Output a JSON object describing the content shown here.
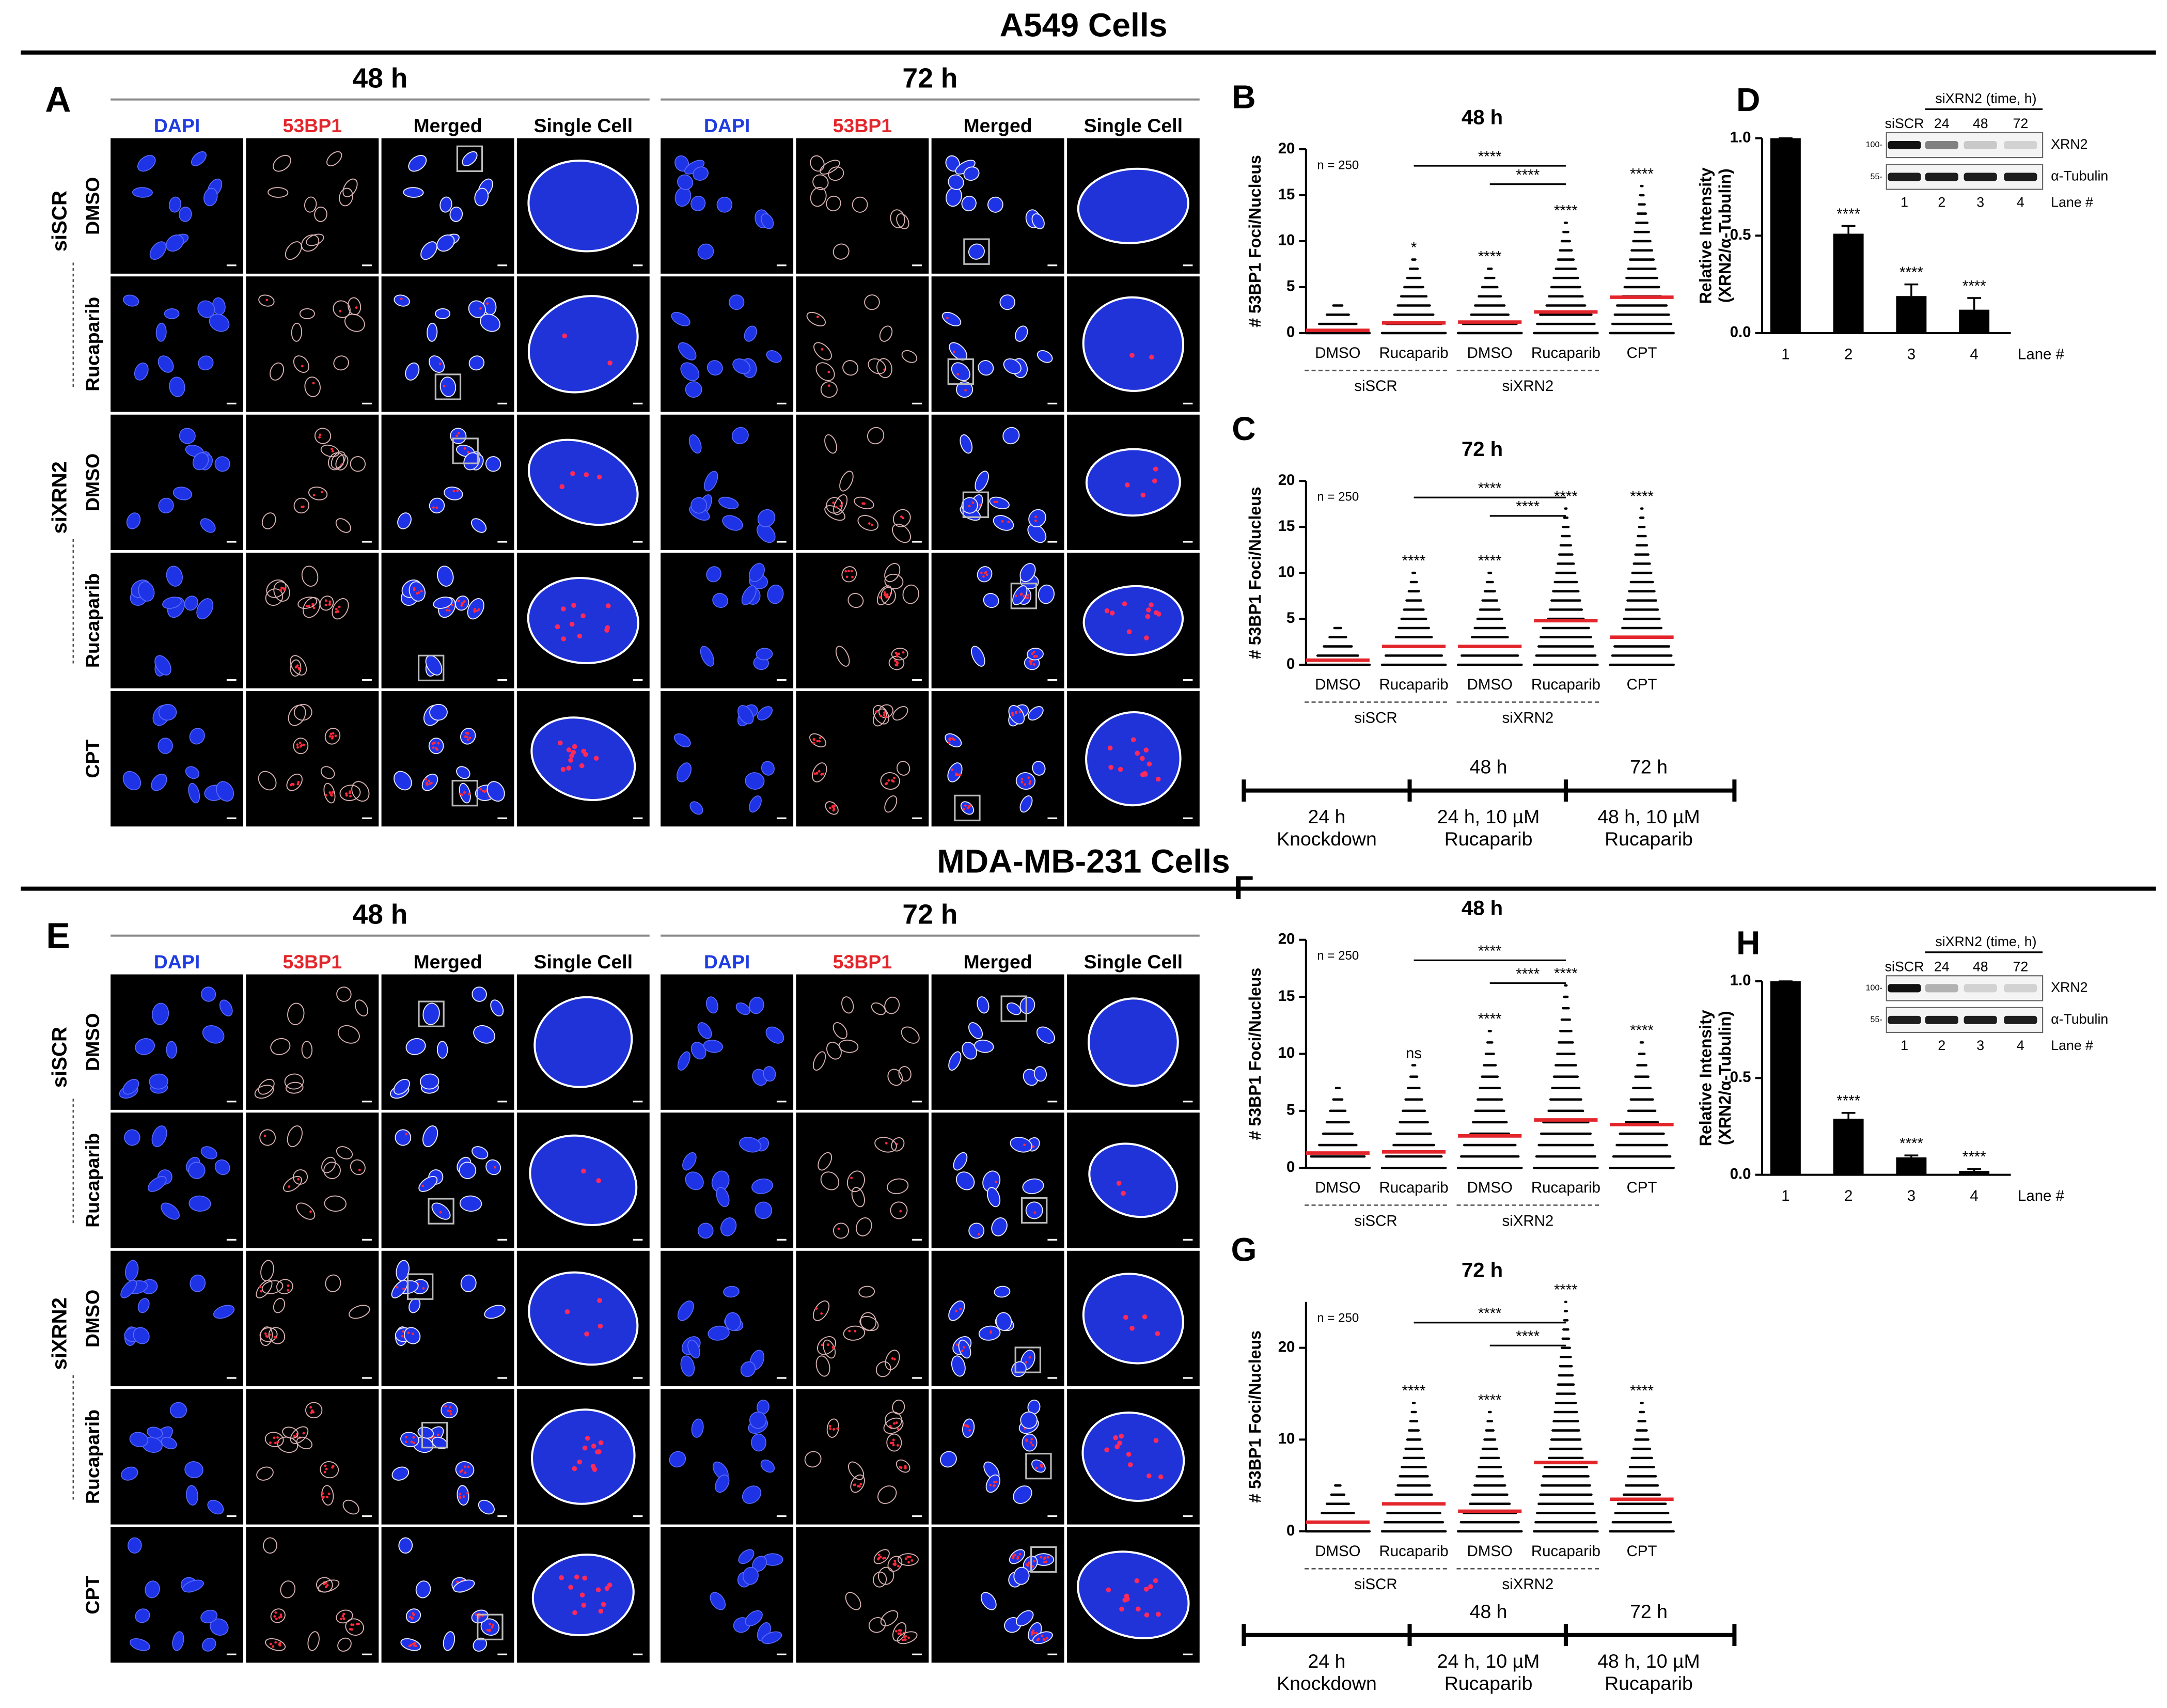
{
  "sections": [
    {
      "title": "A549 Cells",
      "micrograph": {
        "panel": "A",
        "panels": [
          {
            "time": "48 h",
            "channels": [
              "DAPI",
              "53BP1",
              "Merged",
              "Single Cell"
            ]
          },
          {
            "time": "72 h",
            "channels": [
              "DAPI",
              "53BP1",
              "Merged",
              "Single Cell"
            ]
          }
        ],
        "groups": [
          "siSCR",
          "siXRN2"
        ],
        "rows": [
          "DMSO",
          "Rucaparib",
          "DMSO",
          "Rucaparib",
          "CPT"
        ]
      },
      "timeline": {
        "upper": [
          "48 h",
          "72 h"
        ],
        "stages": [
          [
            "24 h",
            "Knockdown"
          ],
          [
            "24 h, 10 µM",
            "Rucaparib"
          ],
          [
            "48 h, 10 µM",
            "Rucaparib"
          ]
        ]
      }
    },
    {
      "title": "MDA-MB-231 Cells",
      "micrograph": {
        "panel": "E",
        "panels": [
          {
            "time": "48 h",
            "channels": [
              "DAPI",
              "53BP1",
              "Merged",
              "Single Cell"
            ]
          },
          {
            "time": "72 h",
            "channels": [
              "DAPI",
              "53BP1",
              "Merged",
              "Single Cell"
            ]
          }
        ],
        "groups": [
          "siSCR",
          "siXRN2"
        ],
        "rows": [
          "DMSO",
          "Rucaparib",
          "DMSO",
          "Rucaparib",
          "CPT"
        ]
      },
      "timeline": {
        "upper": [
          "48 h",
          "72 h"
        ],
        "stages": [
          [
            "24 h",
            "Knockdown"
          ],
          [
            "24 h, 10 µM",
            "Rucaparib"
          ],
          [
            "48 h, 10 µM",
            "Rucaparib"
          ]
        ]
      }
    }
  ],
  "chart_data": [
    {
      "type": "dotplot",
      "panel": "B",
      "title": "48 h",
      "ylabel": "# 53BP1 Foci/Nucleus",
      "n_label": "n = 250",
      "categories": [
        "DMSO",
        "Rucaparib",
        "DMSO",
        "Rucaparib",
        "CPT"
      ],
      "group_labels": [
        "siSCR",
        "siXRN2"
      ],
      "values": [
        0.3,
        1.1,
        1.2,
        2.3,
        3.9
      ],
      "max": [
        3,
        8,
        7,
        12,
        16
      ],
      "sig_labels": [
        null,
        "*",
        "****",
        "****",
        "****"
      ],
      "comparisons": [
        "****",
        "****"
      ],
      "mean_color": "#e3262b",
      "ylim": [
        0,
        20
      ],
      "yticks": [
        0,
        5,
        10,
        15,
        20
      ]
    },
    {
      "type": "dotplot",
      "panel": "C",
      "title": "72 h",
      "ylabel": "# 53BP1 Foci/Nucleus",
      "n_label": "n = 250",
      "categories": [
        "DMSO",
        "Rucaparib",
        "DMSO",
        "Rucaparib",
        "CPT"
      ],
      "group_labels": [
        "siSCR",
        "siXRN2"
      ],
      "values": [
        0.5,
        2,
        2,
        4.8,
        3
      ],
      "max": [
        4,
        10,
        10,
        17,
        17
      ],
      "sig_labels": [
        null,
        "****",
        "****",
        "****",
        "****"
      ],
      "comparisons": [
        "****",
        "****"
      ],
      "mean_color": "#e3262b",
      "ylim": [
        0,
        20
      ],
      "yticks": [
        0,
        5,
        10,
        15,
        20
      ]
    },
    {
      "type": "bar",
      "panel": "D",
      "ylabel_lines": [
        "Relative Intensity",
        "(XRN2/α-Tubulin)"
      ],
      "categories": [
        "1",
        "2",
        "3",
        "4"
      ],
      "xlabel": "Lane #",
      "values": [
        1,
        0.51,
        0.19,
        0.12
      ],
      "errors": [
        0,
        0.04,
        0.06,
        0.06
      ],
      "sig_labels": [
        null,
        "****",
        "****",
        "****"
      ],
      "color": "#000000",
      "ylim": [
        0,
        1
      ],
      "yticks": [
        {
          "value": 0,
          "label": "0.0"
        },
        0.5,
        {
          "value": 1,
          "label": "1.0"
        }
      ],
      "blot": {
        "control": "siSCR",
        "treatment": "siXRN2 (time, h)",
        "times": [
          "24",
          "48",
          "72"
        ],
        "bands": [
          "XRN2",
          "α-Tubulin"
        ],
        "markers": [
          "100-",
          "55-"
        ],
        "lanes": [
          "1",
          "2",
          "3",
          "4"
        ],
        "lane_label": "Lane #"
      }
    },
    {
      "type": "dotplot",
      "panel": "F",
      "title": "48 h",
      "ylabel": "# 53BP1 Foci/Nucleus",
      "n_label": "n = 250",
      "categories": [
        "DMSO",
        "Rucaparib",
        "DMSO",
        "Rucaparib",
        "CPT"
      ],
      "group_labels": [
        "siSCR",
        "siXRN2"
      ],
      "values": [
        1.3,
        1.4,
        2.8,
        4.2,
        3.8
      ],
      "max": [
        7,
        9,
        12,
        16,
        11
      ],
      "sig_labels": [
        null,
        "ns",
        "****",
        "****",
        "****"
      ],
      "comparisons": [
        "****",
        "****"
      ],
      "mean_color": "#e3262b",
      "ylim": [
        0,
        20
      ],
      "yticks": [
        0,
        5,
        10,
        15,
        20
      ]
    },
    {
      "type": "dotplot",
      "panel": "G",
      "title": "72 h",
      "ylabel": "# 53BP1 Foci/Nucleus",
      "n_label": "n = 250",
      "categories": [
        "DMSO",
        "Rucaparib",
        "DMSO",
        "Rucaparib",
        "CPT"
      ],
      "group_labels": [
        "siSCR",
        "siXRN2"
      ],
      "values": [
        1,
        3,
        2.2,
        7.5,
        3.5
      ],
      "max": [
        5,
        14,
        13,
        25,
        14
      ],
      "sig_labels": [
        null,
        "****",
        "****",
        "****",
        "****"
      ],
      "comparisons": [
        "****",
        "****"
      ],
      "mean_color": "#e3262b",
      "ylim": [
        0,
        25
      ],
      "yticks": [
        0,
        10,
        20
      ]
    },
    {
      "type": "bar",
      "panel": "H",
      "ylabel_lines": [
        "Relative Intensity",
        "(XRN2/α-Tubulin)"
      ],
      "categories": [
        "1",
        "2",
        "3",
        "4"
      ],
      "xlabel": "Lane #",
      "values": [
        1,
        0.29,
        0.09,
        0.02
      ],
      "errors": [
        0,
        0.03,
        0.01,
        0.01
      ],
      "sig_labels": [
        null,
        "****",
        "****",
        "****"
      ],
      "color": "#000000",
      "ylim": [
        0,
        1
      ],
      "yticks": [
        {
          "value": 0,
          "label": "0.0"
        },
        0.5,
        {
          "value": 1,
          "label": "1.0"
        }
      ],
      "blot": {
        "control": "siSCR",
        "treatment": "siXRN2 (time, h)",
        "times": [
          "24",
          "48",
          "72"
        ],
        "bands": [
          "XRN2",
          "α-Tubulin"
        ],
        "markers": [
          "100-",
          "55-"
        ],
        "lanes": [
          "1",
          "2",
          "3",
          "4"
        ],
        "lane_label": "Lane #"
      }
    }
  ]
}
